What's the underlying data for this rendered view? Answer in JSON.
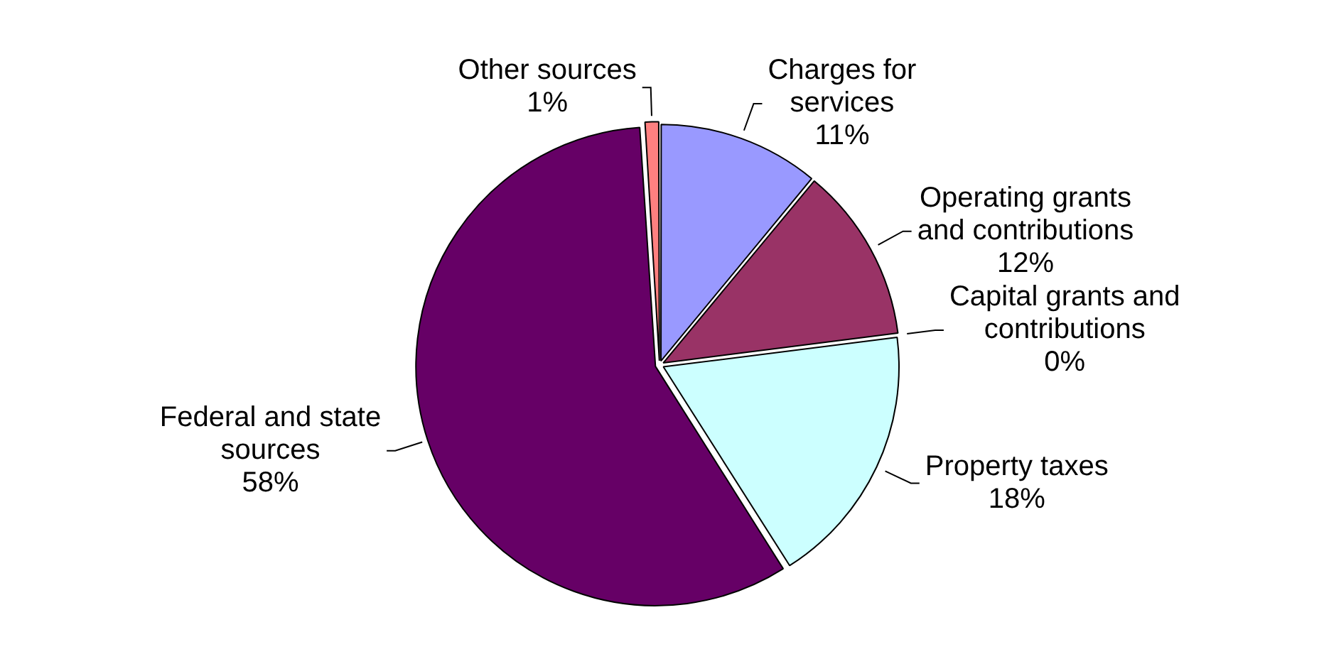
{
  "chart_data": {
    "type": "pie",
    "categories": [
      "Charges for services",
      "Operating grants and contributions",
      "Capital grants and contributions",
      "Property taxes",
      "Federal and state sources",
      "Other sources"
    ],
    "values": [
      11,
      12,
      0,
      18,
      58,
      1
    ],
    "colors": [
      "#9999ff",
      "#993366",
      "#ffffcc",
      "#ccffff",
      "#660066",
      "#ff8080"
    ],
    "value_labels": [
      "11%",
      "12%",
      "0%",
      "18%",
      "58%",
      "1%"
    ]
  }
}
